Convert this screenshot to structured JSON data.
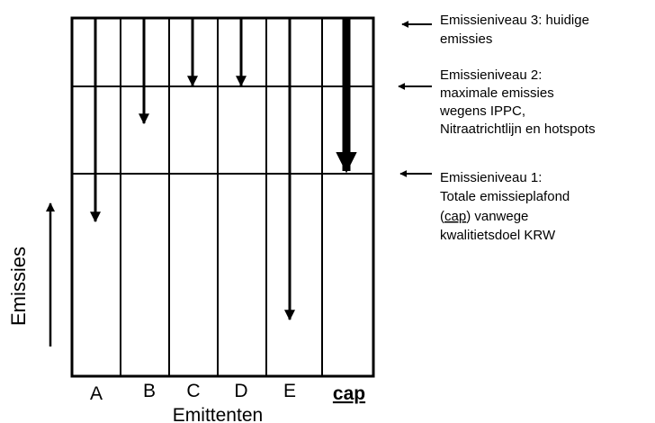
{
  "emitters": [
    {
      "label": "A",
      "emphasis": false
    },
    {
      "label": "B",
      "emphasis": false
    },
    {
      "label": "C",
      "emphasis": false
    },
    {
      "label": "D",
      "emphasis": false
    },
    {
      "label": "E",
      "emphasis": false
    },
    {
      "label": "cap",
      "emphasis": true
    }
  ],
  "xlabel": "Emittenten",
  "ylabel": "Emissies",
  "levels": [
    {
      "id": 3,
      "lines": [
        "Emissieniveau 3: huidige",
        "emissies"
      ]
    },
    {
      "id": 2,
      "lines": [
        "Emissieniveau 2:",
        "maximale emissies",
        "wegens IPPC,",
        "Nitraatrichtlijn en hotspots"
      ]
    },
    {
      "id": 1,
      "lines": [
        "Emissieniveau 1:",
        "Totale emissieplafond",
        "(cap) vanwege",
        "kwalitietsdoel KRW"
      ],
      "underline": "cap"
    }
  ],
  "reductions": [
    {
      "emitter": "A",
      "from": "Emissieniveau 3",
      "to": "below Emissieniveau 1"
    },
    {
      "emitter": "B",
      "from": "Emissieniveau 3",
      "to": "below Emissieniveau 2"
    },
    {
      "emitter": "C",
      "from": "Emissieniveau 3",
      "to": "Emissieniveau 2"
    },
    {
      "emitter": "D",
      "from": "Emissieniveau 3",
      "to": "Emissieniveau 2"
    },
    {
      "emitter": "E",
      "from": "Emissieniveau 3",
      "to": "far below Emissieniveau 1"
    },
    {
      "emitter": "cap",
      "from": "Emissieniveau 3",
      "to": "Emissieniveau 1",
      "emphasis": true
    }
  ]
}
